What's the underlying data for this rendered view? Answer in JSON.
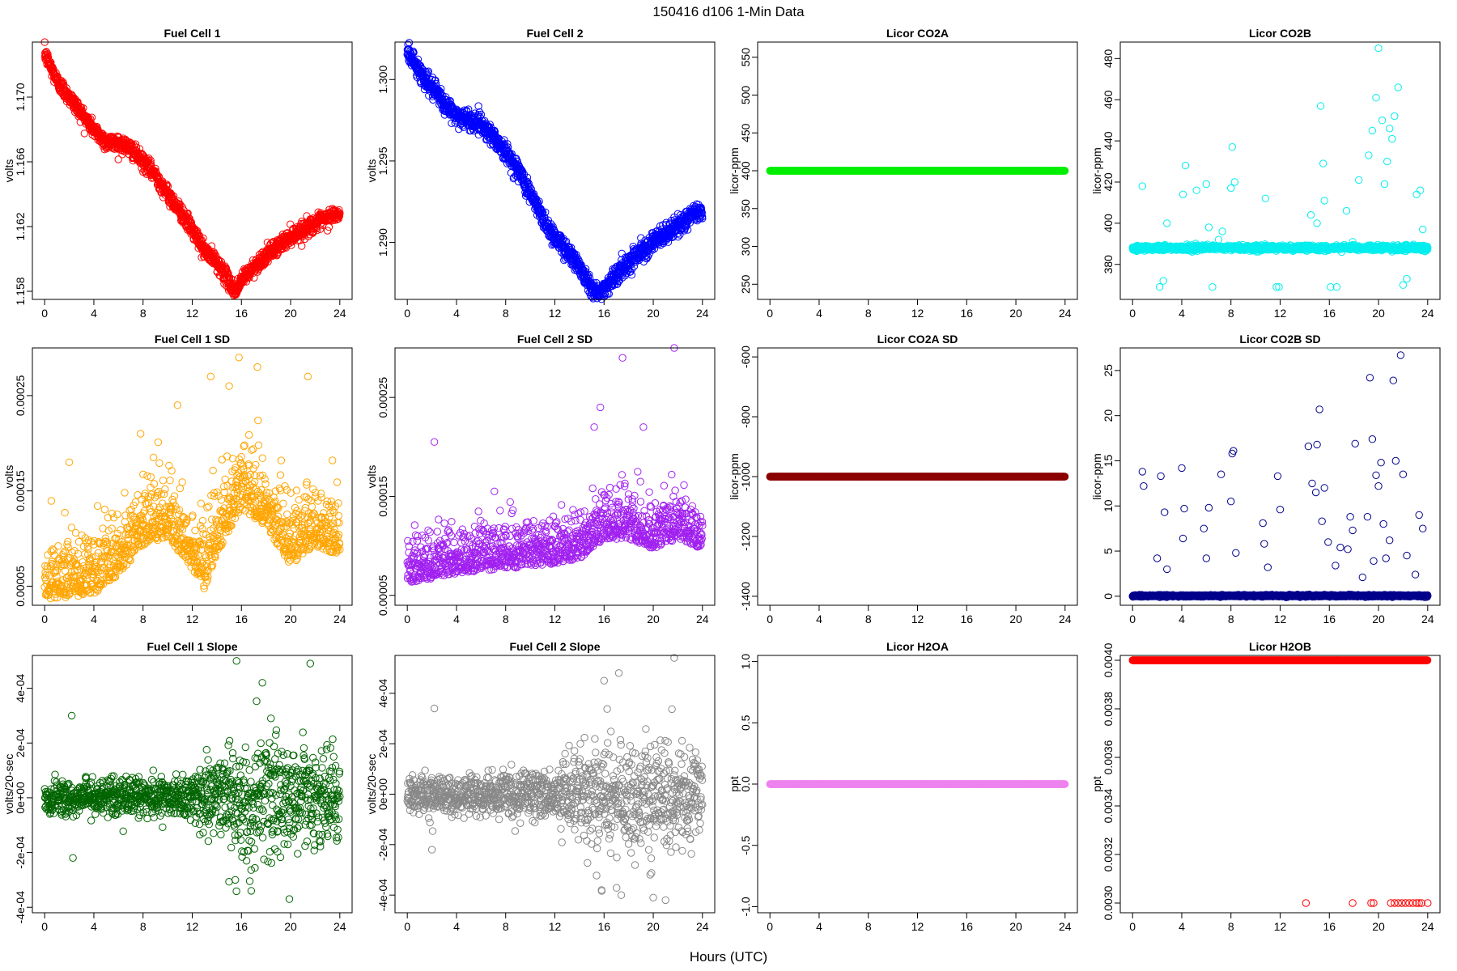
{
  "figure": {
    "title": "150416   d106   1-Min Data",
    "xlabel": "Hours (UTC)"
  },
  "chart_data": [
    {
      "type": "scatter",
      "id": "fc1",
      "title": "Fuel Cell 1",
      "ylabel": "volts",
      "color": "#ff0000",
      "xlim": [
        -1,
        25
      ],
      "ylim": [
        1.1575,
        1.1734
      ],
      "yticks": [
        1.158,
        1.162,
        1.166,
        1.17
      ],
      "ytick_labels": [
        "1.158",
        "1.162",
        "1.166",
        "1.170"
      ],
      "xticks": [
        0,
        4,
        8,
        12,
        16,
        20,
        24
      ],
      "x": [
        0.0,
        1.0,
        2.0,
        3.0,
        4.0,
        5.0,
        6.0,
        7.0,
        8.0,
        9.0,
        10.0,
        11.0,
        12.0,
        13.0,
        14.0,
        15.0,
        15.5,
        16.0,
        17.0,
        18.0,
        19.0,
        20.0,
        21.0,
        22.0,
        23.0,
        23.5,
        24.0
      ],
      "y": [
        1.1727,
        1.171,
        1.17,
        1.169,
        1.168,
        1.1672,
        1.1672,
        1.1668,
        1.166,
        1.1652,
        1.164,
        1.163,
        1.1618,
        1.1605,
        1.1598,
        1.1586,
        1.158,
        1.1587,
        1.1595,
        1.1602,
        1.1608,
        1.1614,
        1.1618,
        1.1622,
        1.1625,
        1.1628,
        1.1626
      ],
      "noise": 0.00025,
      "n": 1440,
      "style": "dense"
    },
    {
      "type": "scatter",
      "id": "fc2",
      "title": "Fuel Cell 2",
      "ylabel": "volts",
      "color": "#0000ff",
      "xlim": [
        -1,
        25
      ],
      "ylim": [
        1.2865,
        1.3023
      ],
      "yticks": [
        1.29,
        1.295,
        1.3
      ],
      "ytick_labels": [
        "1.290",
        "1.295",
        "1.300"
      ],
      "xticks": [
        0,
        4,
        8,
        12,
        16,
        20,
        24
      ],
      "x": [
        0.0,
        1.0,
        2.0,
        3.0,
        4.0,
        5.0,
        6.0,
        7.0,
        8.0,
        9.0,
        10.0,
        11.0,
        12.0,
        13.0,
        14.0,
        15.0,
        15.5,
        16.0,
        17.0,
        18.0,
        19.0,
        20.0,
        21.0,
        22.0,
        23.0,
        24.0
      ],
      "y": [
        1.3018,
        1.3005,
        1.2995,
        1.2985,
        1.2978,
        1.2975,
        1.2973,
        1.2965,
        1.2955,
        1.2945,
        1.293,
        1.2915,
        1.2903,
        1.2895,
        1.2885,
        1.2873,
        1.2867,
        1.2872,
        1.288,
        1.2888,
        1.2895,
        1.29,
        1.2905,
        1.291,
        1.2916,
        1.292
      ],
      "noise": 0.0003,
      "n": 1440,
      "style": "dense"
    },
    {
      "type": "scatter",
      "id": "co2a",
      "title": "Licor CO2A",
      "ylabel": "licor-ppm",
      "color": "#00ee00",
      "xlim": [
        -1,
        25
      ],
      "ylim": [
        230,
        570
      ],
      "yticks": [
        250,
        300,
        350,
        400,
        450,
        500,
        550
      ],
      "ytick_labels": [
        "250",
        "300",
        "350",
        "400",
        "450",
        "500",
        "550"
      ],
      "xticks": [
        0,
        4,
        8,
        12,
        16,
        20,
        24
      ],
      "x": [
        0,
        24
      ],
      "y": [
        400,
        400
      ],
      "noise": 0,
      "n": 1440,
      "style": "dense"
    },
    {
      "type": "scatter",
      "id": "co2b",
      "title": "Licor CO2B",
      "ylabel": "licor-ppm",
      "color": "#00eeee",
      "xlim": [
        -1,
        25
      ],
      "ylim": [
        363,
        488
      ],
      "yticks": [
        380,
        400,
        420,
        440,
        460,
        480
      ],
      "ytick_labels": [
        "380",
        "400",
        "420",
        "440",
        "460",
        "480"
      ],
      "xticks": [
        0,
        4,
        8,
        12,
        16,
        20,
        24
      ],
      "x": [
        0,
        24
      ],
      "y": [
        388,
        388
      ],
      "noise": 0.6,
      "n": 1440,
      "style": "dense",
      "outliers": [
        [
          0.8,
          418
        ],
        [
          2.2,
          369
        ],
        [
          2.5,
          372
        ],
        [
          2.8,
          400
        ],
        [
          4.3,
          428
        ],
        [
          4.1,
          414
        ],
        [
          5.2,
          416
        ],
        [
          6.0,
          419
        ],
        [
          6.2,
          398
        ],
        [
          6.5,
          369
        ],
        [
          7.0,
          392
        ],
        [
          7.3,
          396
        ],
        [
          8.0,
          417
        ],
        [
          8.1,
          437
        ],
        [
          8.3,
          420
        ],
        [
          10.8,
          412
        ],
        [
          11.7,
          369
        ],
        [
          11.9,
          369
        ],
        [
          14.5,
          404
        ],
        [
          15.0,
          400
        ],
        [
          15.3,
          457
        ],
        [
          15.5,
          429
        ],
        [
          15.6,
          411
        ],
        [
          16.1,
          369
        ],
        [
          16.6,
          369
        ],
        [
          17.0,
          386
        ],
        [
          17.4,
          406
        ],
        [
          17.9,
          391
        ],
        [
          18.4,
          421
        ],
        [
          19.2,
          433
        ],
        [
          19.5,
          445
        ],
        [
          19.8,
          461
        ],
        [
          20.0,
          485
        ],
        [
          20.3,
          450
        ],
        [
          20.5,
          419
        ],
        [
          20.7,
          430
        ],
        [
          20.9,
          446
        ],
        [
          21.1,
          441
        ],
        [
          21.3,
          452
        ],
        [
          21.6,
          466
        ],
        [
          22.0,
          370
        ],
        [
          22.3,
          373
        ],
        [
          23.1,
          414
        ],
        [
          23.4,
          416
        ],
        [
          23.6,
          397
        ]
      ]
    },
    {
      "type": "scatter",
      "id": "fc1sd",
      "title": "Fuel Cell 1 SD",
      "ylabel": "volts",
      "color": "#ffa500",
      "xlim": [
        -1,
        25
      ],
      "ylim": [
        3e-05,
        0.0003
      ],
      "yticks": [
        5e-05,
        0.00015,
        0.00025
      ],
      "ytick_labels": [
        "0.00005",
        "0.00015",
        "0.00025"
      ],
      "xticks": [
        0,
        4,
        8,
        12,
        16,
        20,
        24
      ],
      "x": [
        0,
        2,
        4,
        6,
        8,
        10,
        12,
        13,
        14,
        16,
        18,
        20,
        22,
        24
      ],
      "y": [
        5.5e-05,
        5.5e-05,
        6e-05,
        8e-05,
        0.00011,
        0.00012,
        8.5e-05,
        6.5e-05,
        0.0001,
        0.00015,
        0.00013,
        9e-05,
        0.00011,
        0.0001
      ],
      "noise": 3e-05,
      "n": 1200,
      "style": "scatter",
      "outliers": [
        [
          2.0,
          0.00018
        ],
        [
          13.5,
          0.00027
        ],
        [
          15.0,
          0.00026
        ],
        [
          15.8,
          0.00029
        ],
        [
          17.3,
          0.00028
        ],
        [
          21.4,
          0.00027
        ],
        [
          10.8,
          0.00024
        ],
        [
          7.8,
          0.00021
        ]
      ]
    },
    {
      "type": "scatter",
      "id": "fc2sd",
      "title": "Fuel Cell 2 SD",
      "ylabel": "volts",
      "color": "#a020f0",
      "xlim": [
        -1,
        25
      ],
      "ylim": [
        4e-05,
        0.0003
      ],
      "yticks": [
        5e-05,
        0.00015,
        0.00025
      ],
      "ytick_labels": [
        "0.00005",
        "0.00015",
        "0.00025"
      ],
      "xticks": [
        0,
        4,
        8,
        12,
        16,
        20,
        24
      ],
      "x": [
        0,
        4,
        8,
        12,
        14,
        16,
        18,
        20,
        22,
        24
      ],
      "y": [
        7.5e-05,
        8.5e-05,
        9e-05,
        9.5e-05,
        0.0001,
        0.00012,
        0.00012,
        0.00011,
        0.00012,
        0.00011
      ],
      "noise": 2.2e-05,
      "n": 1200,
      "style": "scatter",
      "outliers": [
        [
          2.2,
          0.000205
        ],
        [
          15.7,
          0.00024
        ],
        [
          17.5,
          0.00029
        ],
        [
          21.7,
          0.0003
        ],
        [
          19.2,
          0.00022
        ],
        [
          15.2,
          0.00022
        ]
      ]
    },
    {
      "type": "scatter",
      "id": "co2asd",
      "title": "Licor CO2A SD",
      "ylabel": "licor-ppm",
      "color": "#8b0000",
      "xlim": [
        -1,
        25
      ],
      "ylim": [
        -1430,
        -570
      ],
      "yticks": [
        -1400,
        -1200,
        -1000,
        -800,
        -600
      ],
      "ytick_labels": [
        "-1400",
        "-1200",
        "-1000",
        "-800",
        "-600"
      ],
      "xticks": [
        0,
        4,
        8,
        12,
        16,
        20,
        24
      ],
      "x": [
        0,
        24
      ],
      "y": [
        -1000,
        -1000
      ],
      "noise": 0,
      "n": 1440,
      "style": "dense"
    },
    {
      "type": "scatter",
      "id": "co2bsd",
      "title": "Licor CO2B SD",
      "ylabel": "licor-ppm",
      "color": "#00008b",
      "xlim": [
        -1,
        25
      ],
      "ylim": [
        -1,
        27.5
      ],
      "yticks": [
        0,
        5,
        10,
        15,
        20,
        25
      ],
      "ytick_labels": [
        "0",
        "5",
        "10",
        "15",
        "20",
        "25"
      ],
      "xticks": [
        0,
        4,
        8,
        12,
        16,
        20,
        24
      ],
      "x": [
        0,
        24
      ],
      "y": [
        0.05,
        0.05
      ],
      "noise": 0.05,
      "n": 1440,
      "style": "dense",
      "outliers": [
        [
          0.8,
          13.8
        ],
        [
          0.9,
          12.2
        ],
        [
          2.0,
          4.2
        ],
        [
          2.3,
          13.3
        ],
        [
          2.6,
          9.3
        ],
        [
          2.8,
          3.0
        ],
        [
          4.0,
          14.2
        ],
        [
          4.2,
          9.7
        ],
        [
          4.1,
          6.4
        ],
        [
          5.8,
          7.5
        ],
        [
          6.2,
          9.8
        ],
        [
          6.0,
          4.2
        ],
        [
          7.2,
          13.5
        ],
        [
          8.1,
          15.8
        ],
        [
          8.2,
          16.1
        ],
        [
          8.0,
          10.5
        ],
        [
          8.4,
          4.8
        ],
        [
          10.6,
          8.1
        ],
        [
          10.7,
          5.8
        ],
        [
          11.0,
          3.2
        ],
        [
          11.8,
          13.3
        ],
        [
          12.0,
          9.6
        ],
        [
          14.3,
          16.6
        ],
        [
          14.6,
          12.5
        ],
        [
          14.9,
          11.5
        ],
        [
          15.0,
          16.8
        ],
        [
          15.2,
          20.7
        ],
        [
          15.4,
          8.3
        ],
        [
          15.6,
          12.0
        ],
        [
          15.9,
          6.0
        ],
        [
          16.5,
          3.4
        ],
        [
          16.9,
          5.4
        ],
        [
          17.5,
          5.2
        ],
        [
          17.7,
          8.8
        ],
        [
          17.9,
          7.3
        ],
        [
          18.1,
          16.9
        ],
        [
          19.1,
          8.8
        ],
        [
          19.3,
          24.2
        ],
        [
          19.5,
          17.4
        ],
        [
          19.8,
          13.4
        ],
        [
          20.0,
          12.2
        ],
        [
          20.2,
          14.8
        ],
        [
          20.4,
          8.0
        ],
        [
          20.6,
          4.2
        ],
        [
          20.9,
          6.2
        ],
        [
          21.2,
          23.9
        ],
        [
          21.4,
          15.0
        ],
        [
          21.8,
          26.7
        ],
        [
          22.0,
          13.5
        ],
        [
          22.3,
          4.5
        ],
        [
          23.3,
          9.0
        ],
        [
          23.6,
          7.5
        ],
        [
          23.0,
          2.4
        ],
        [
          19.6,
          3.9
        ],
        [
          18.7,
          2.1
        ]
      ]
    },
    {
      "type": "scatter",
      "id": "fc1slope",
      "title": "Fuel Cell 1 Slope",
      "ylabel": "volts/20-sec",
      "color": "#006400",
      "xlim": [
        -1,
        25
      ],
      "ylim": [
        -0.00042,
        0.00052
      ],
      "yticks": [
        -0.0004,
        -0.0002,
        0.0,
        0.0002,
        0.0004
      ],
      "ytick_labels": [
        "-4e-04",
        "-2e-04",
        "0e+00",
        "2e-04",
        "4e-04"
      ],
      "xticks": [
        0,
        4,
        8,
        12,
        16,
        20,
        24
      ],
      "x": [
        0,
        24
      ],
      "y": [
        0.0,
        0.0
      ],
      "noise_profile": [
        [
          0,
          3e-05
        ],
        [
          12,
          4e-05
        ],
        [
          14,
          8e-05
        ],
        [
          16,
          0.00012
        ],
        [
          20,
          0.0001
        ],
        [
          24,
          7e-05
        ]
      ],
      "n": 1200,
      "style": "scatter",
      "outliers": [
        [
          2.2,
          0.0003
        ],
        [
          15.6,
          0.0005
        ],
        [
          21.6,
          0.00049
        ],
        [
          17.7,
          0.00042
        ],
        [
          18.4,
          0.00029
        ],
        [
          19.9,
          -0.00037
        ],
        [
          16.8,
          -0.00034
        ],
        [
          2.3,
          -0.00022
        ],
        [
          15.5,
          -0.0003
        ]
      ]
    },
    {
      "type": "scatter",
      "id": "fc2slope",
      "title": "Fuel Cell 2 Slope",
      "ylabel": "volts/20-sec",
      "color": "#888888",
      "xlim": [
        -1,
        25
      ],
      "ylim": [
        -0.00047,
        0.00055
      ],
      "yticks": [
        -0.0004,
        -0.0002,
        0.0,
        0.0002,
        0.0004
      ],
      "ytick_labels": [
        "-4e-04",
        "-2e-04",
        "0e+00",
        "2e-04",
        "4e-04"
      ],
      "xticks": [
        0,
        4,
        8,
        12,
        16,
        20,
        24
      ],
      "x": [
        0,
        24
      ],
      "y": [
        0.0,
        0.0
      ],
      "noise_profile": [
        [
          0,
          4e-05
        ],
        [
          12,
          5e-05
        ],
        [
          14,
          9e-05
        ],
        [
          16,
          0.00012
        ],
        [
          20,
          0.00011
        ],
        [
          24,
          8e-05
        ]
      ],
      "n": 1200,
      "style": "scatter",
      "outliers": [
        [
          2.2,
          0.00034
        ],
        [
          21.7,
          0.00054
        ],
        [
          17.2,
          0.00048
        ],
        [
          16.0,
          0.00045
        ],
        [
          20.0,
          -0.00041
        ],
        [
          21.0,
          -0.00042
        ],
        [
          17.4,
          -0.0004
        ],
        [
          15.8,
          -0.00038
        ],
        [
          2.0,
          -0.00022
        ]
      ]
    },
    {
      "type": "scatter",
      "id": "h2oa",
      "title": "Licor H2OA",
      "ylabel": "ppt",
      "color": "#ee82ee",
      "xlim": [
        -1,
        25
      ],
      "ylim": [
        -1.05,
        1.05
      ],
      "yticks": [
        -1.0,
        -0.5,
        0.0,
        0.5,
        1.0
      ],
      "ytick_labels": [
        "-1.0",
        "-0.5",
        "0.0",
        "0.5",
        "1.0"
      ],
      "xticks": [
        0,
        4,
        8,
        12,
        16,
        20,
        24
      ],
      "x": [
        0,
        24
      ],
      "y": [
        0.0,
        0.0
      ],
      "noise": 0,
      "n": 1440,
      "style": "dense"
    },
    {
      "type": "scatter",
      "id": "h2ob",
      "title": "Licor H2OB",
      "ylabel": "ppt",
      "color": "#ff0000",
      "xlim": [
        -1,
        25
      ],
      "ylim": [
        0.00296,
        0.00402
      ],
      "yticks": [
        0.003,
        0.0032,
        0.0034,
        0.0036,
        0.0038,
        0.004
      ],
      "ytick_labels": [
        "0.0030",
        "0.0032",
        "0.0034",
        "0.0036",
        "0.0038",
        "0.0040"
      ],
      "xticks": [
        0,
        4,
        8,
        12,
        16,
        20,
        24
      ],
      "x": [
        0,
        24
      ],
      "y": [
        0.004,
        0.004
      ],
      "noise": 0,
      "n": 1440,
      "style": "dense",
      "outliers": [
        [
          14.1,
          0.003
        ],
        [
          17.9,
          0.003
        ],
        [
          19.4,
          0.003
        ],
        [
          19.6,
          0.003
        ],
        [
          21.0,
          0.003
        ],
        [
          21.3,
          0.003
        ],
        [
          21.6,
          0.003
        ],
        [
          21.9,
          0.003
        ],
        [
          22.2,
          0.003
        ],
        [
          22.5,
          0.003
        ],
        [
          22.8,
          0.003
        ],
        [
          23.1,
          0.003
        ],
        [
          23.3,
          0.003
        ],
        [
          23.5,
          0.003
        ],
        [
          24.0,
          0.003
        ]
      ]
    }
  ]
}
